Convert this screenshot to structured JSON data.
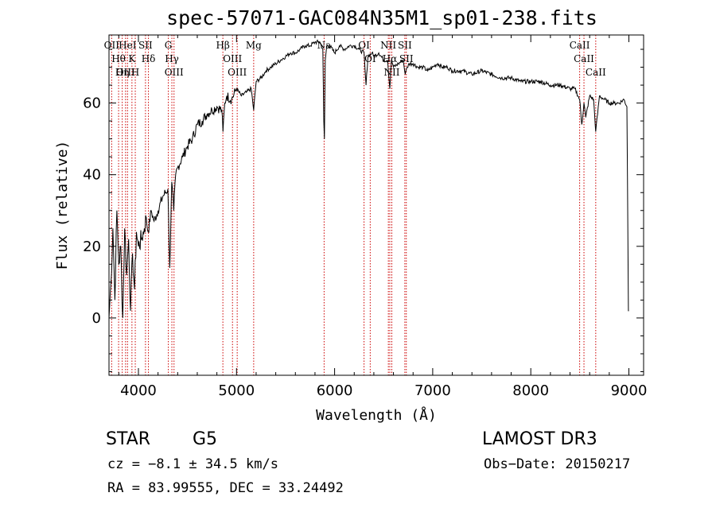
{
  "title": "spec-57071-GAC084N35M1_sp01-238.fits",
  "info": {
    "object_class": "STAR",
    "subclass": "G5",
    "survey": "LAMOST DR3",
    "cz": "cz = −8.1 ± 34.5 km/s",
    "obs_date": "Obs−Date: 20150217",
    "coords": "RA =  83.99555, DEC =  33.24492"
  },
  "colors": {
    "spectrum": "#000000",
    "line_marker": "#cc0000",
    "axis": "#000000"
  },
  "chart_data": {
    "type": "line",
    "title": "spec-57071-GAC084N35M1_sp01-238.fits",
    "xlabel": "Wavelength (Å)",
    "ylabel": "Flux (relative)",
    "xlim": [
      3700,
      9150
    ],
    "ylim": [
      -16,
      79
    ],
    "xticks": [
      4000,
      5000,
      6000,
      7000,
      8000,
      9000
    ],
    "yticks": [
      0,
      20,
      40,
      60
    ],
    "series": [
      {
        "name": "flux",
        "x": [
          3700,
          3720,
          3740,
          3760,
          3780,
          3800,
          3820,
          3840,
          3860,
          3880,
          3900,
          3920,
          3940,
          3960,
          3980,
          4000,
          4030,
          4060,
          4080,
          4100,
          4130,
          4160,
          4200,
          4250,
          4300,
          4320,
          4340,
          4360,
          4380,
          4400,
          4450,
          4500,
          4550,
          4600,
          4650,
          4700,
          4750,
          4800,
          4850,
          4862,
          4880,
          4900,
          4950,
          5000,
          5050,
          5100,
          5150,
          5175,
          5200,
          5250,
          5300,
          5350,
          5400,
          5450,
          5500,
          5550,
          5600,
          5650,
          5700,
          5750,
          5800,
          5850,
          5880,
          5890,
          5896,
          5905,
          5920,
          5950,
          6000,
          6050,
          6100,
          6150,
          6200,
          6250,
          6300,
          6320,
          6340,
          6380,
          6400,
          6450,
          6500,
          6540,
          6563,
          6580,
          6600,
          6650,
          6700,
          6720,
          6740,
          6760,
          6800,
          6850,
          6900,
          6950,
          7000,
          7050,
          7100,
          7150,
          7200,
          7300,
          7400,
          7500,
          7600,
          7700,
          7800,
          7900,
          8000,
          8100,
          8200,
          8300,
          8400,
          8450,
          8498,
          8520,
          8542,
          8560,
          8600,
          8640,
          8662,
          8700,
          8750,
          8800,
          8850,
          8900,
          8950,
          8980,
          8995,
          9000
        ],
        "values": [
          0,
          10,
          25,
          5,
          30,
          15,
          20,
          0,
          25,
          12,
          22,
          2,
          18,
          8,
          24,
          20,
          22,
          25,
          28,
          24,
          30,
          27,
          30,
          34,
          36,
          14,
          38,
          30,
          40,
          42,
          45,
          48,
          50,
          54,
          55,
          57,
          58,
          59,
          58,
          52,
          60,
          62,
          61,
          64,
          62,
          63,
          64,
          58,
          66,
          67,
          69,
          70,
          71,
          72,
          73,
          74,
          74,
          75,
          76,
          76,
          77,
          77,
          75,
          55,
          50,
          72,
          76,
          76,
          74,
          76,
          75,
          76,
          76,
          75,
          74,
          65,
          73,
          74,
          73,
          74,
          72,
          72,
          64,
          72,
          70,
          71,
          72,
          68,
          70,
          71,
          71,
          70,
          70,
          69,
          70,
          71,
          70,
          70,
          69,
          69,
          68,
          69,
          68,
          67,
          67,
          66,
          66,
          66,
          65,
          65,
          64,
          64,
          61,
          54,
          60,
          56,
          62,
          61,
          52,
          62,
          61,
          60,
          60,
          60,
          61,
          59,
          2,
          2
        ]
      }
    ],
    "line_labels": [
      {
        "label": "OII",
        "wavelength": 3727
      },
      {
        "label": "Hθ",
        "wavelength": 3798
      },
      {
        "label": "Hη",
        "wavelength": 3835
      },
      {
        "label": "OIII",
        "wavelength": 3869
      },
      {
        "label": "HeI",
        "wavelength": 3889
      },
      {
        "label": "K",
        "wavelength": 3934
      },
      {
        "label": "H",
        "wavelength": 3968
      },
      {
        "label": "SII",
        "wavelength": 4072
      },
      {
        "label": "Hδ",
        "wavelength": 4102
      },
      {
        "label": "G",
        "wavelength": 4305
      },
      {
        "label": "Hγ",
        "wavelength": 4341
      },
      {
        "label": "OIII",
        "wavelength": 4363
      },
      {
        "label": "Hβ",
        "wavelength": 4861
      },
      {
        "label": "OIII",
        "wavelength": 4959
      },
      {
        "label": "OIII",
        "wavelength": 5007
      },
      {
        "label": "Mg",
        "wavelength": 5175
      },
      {
        "label": "Na",
        "wavelength": 5893
      },
      {
        "label": "OI",
        "wavelength": 6300
      },
      {
        "label": "OI",
        "wavelength": 6363
      },
      {
        "label": "NII",
        "wavelength": 6548
      },
      {
        "label": "Hα",
        "wavelength": 6563
      },
      {
        "label": "NII",
        "wavelength": 6583
      },
      {
        "label": "SII",
        "wavelength": 6716
      },
      {
        "label": "SII",
        "wavelength": 6731
      },
      {
        "label": "CaII",
        "wavelength": 8498
      },
      {
        "label": "CaII",
        "wavelength": 8542
      },
      {
        "label": "CaII",
        "wavelength": 8662
      }
    ]
  }
}
